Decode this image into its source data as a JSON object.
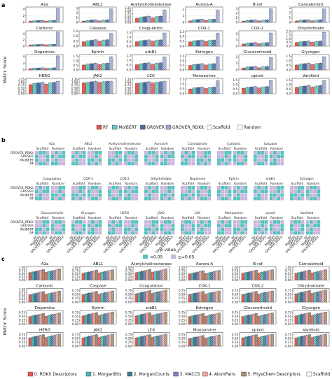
{
  "panel_letters": {
    "a": "a",
    "b": "b",
    "c": "c"
  },
  "colors": {
    "RF": "#e8574b",
    "MolBERT": "#5fc9c4",
    "GROVER": "#4a6a9b",
    "GROVER_RDKit": "#9aa6cf",
    "heat_sig": "#56c3bd",
    "heat_ns": "#c9b7dc",
    "c0": "#e8574b",
    "c1": "#4bb3b5",
    "c2": "#3f7a8c",
    "c3": "#7a86b8",
    "c4": "#f5a38f",
    "c5": "#9e8c7a"
  },
  "chart_data": [
    {
      "type": "bar",
      "panel": "a",
      "ylabel": "Metric Score",
      "targets": [
        "A2a",
        "ABL1",
        "Acetylcholinesterase",
        "Aurora-A",
        "B-raf",
        "Cannabinoid",
        "Carbonic",
        "Caspase",
        "Coagulation",
        "COX-1",
        "COX-2",
        "Dihydrofolate",
        "Dopamine",
        "Ephrin",
        "erbB1",
        "Estrogen",
        "Glucocorticoid",
        "Glycogen",
        "HERG",
        "JAK2",
        "LCK",
        "Monoamine",
        "opioid",
        "Vanilloid"
      ],
      "yticks": [
        [
          "0",
          "2",
          "4"
        ],
        [
          "0",
          "1",
          "2",
          "3"
        ],
        [
          "0.00",
          "0.25",
          "0.50",
          "0.75",
          "1.00",
          "1.25"
        ],
        [
          "0",
          "1",
          "2"
        ],
        [
          "0",
          "1",
          "2",
          "3"
        ],
        [
          "0",
          "1",
          "2",
          "3"
        ],
        [
          "0",
          "2",
          "4"
        ],
        [
          "0.0",
          "0.5",
          "1.0",
          "1.5"
        ],
        [
          "0.0",
          "0.5",
          "1.0",
          "1.5"
        ],
        [
          "0.0",
          "0.5",
          "1.0",
          "1.5"
        ],
        [
          "0",
          "1",
          "2"
        ],
        [
          "0.0",
          "0.5",
          "1.0",
          "1.5",
          "2.0"
        ],
        [
          "0",
          "2",
          "4"
        ],
        [
          "0.0",
          "0.5",
          "1.0",
          "1.5"
        ],
        [
          "0.0",
          "0.5",
          "1.0",
          "1.5"
        ],
        [
          "0.0",
          "0.5",
          "1.0",
          "1.5"
        ],
        [
          "0",
          "1",
          "2"
        ],
        [
          "0.0",
          "0.5",
          "1.0",
          "1.5"
        ],
        [
          "0.00",
          "0.25",
          "0.50",
          "0.75",
          "1.00",
          "1.25"
        ],
        [
          "0.00",
          "0.25",
          "0.50",
          "0.75",
          "1.00",
          "1.25"
        ],
        [
          "0.00",
          "0.25",
          "0.50",
          "0.75",
          "1.00",
          "1.25"
        ],
        [
          "0.0",
          "0.5",
          "1.0",
          "1.5"
        ],
        [
          "0.0",
          "0.5",
          "1.0",
          "1.5"
        ],
        [
          "0.0",
          "0.5",
          "1.0",
          "1.5"
        ]
      ],
      "ylim": [
        4.6,
        3.3,
        1.35,
        2.4,
        3.4,
        3.2,
        5.0,
        1.55,
        1.7,
        1.6,
        2.5,
        2.1,
        4.6,
        1.7,
        1.6,
        1.7,
        2.4,
        1.7,
        1.35,
        1.35,
        1.35,
        1.6,
        1.7,
        1.7
      ],
      "series": [
        {
          "name": "RF",
          "values": [
            0.35,
            0.3,
            0.35,
            0.25,
            0.3,
            0.3,
            0.4,
            0.45,
            0.5,
            0.45,
            0.35,
            0.5,
            0.4,
            0.55,
            0.55,
            0.5,
            0.3,
            0.55,
            0.8,
            0.95,
            0.9,
            0.5,
            0.6,
            0.7
          ]
        },
        {
          "name": "MolBERT",
          "values": [
            0.5,
            0.45,
            0.45,
            0.4,
            0.45,
            0.45,
            0.5,
            0.55,
            0.6,
            0.55,
            0.5,
            0.6,
            0.55,
            0.65,
            0.65,
            0.6,
            0.45,
            0.65,
            0.9,
            1.0,
            0.95,
            0.6,
            0.7,
            0.8
          ]
        },
        {
          "name": "GROVER",
          "values": [
            0.55,
            0.5,
            0.5,
            0.45,
            0.5,
            0.5,
            0.55,
            0.6,
            0.65,
            0.6,
            0.55,
            0.65,
            0.6,
            0.7,
            0.7,
            0.65,
            0.5,
            0.7,
            0.95,
            1.05,
            1.0,
            0.65,
            0.75,
            0.85
          ]
        },
        {
          "name": "GROVER_RDKit",
          "values": [
            0.6,
            0.55,
            0.55,
            0.5,
            0.55,
            0.55,
            0.6,
            0.65,
            0.7,
            0.65,
            0.6,
            0.7,
            0.65,
            0.75,
            0.75,
            0.7,
            0.55,
            0.75,
            1.0,
            1.1,
            1.05,
            0.7,
            0.8,
            0.9
          ]
        }
      ],
      "random_series": [
        {
          "name": "RF",
          "values": [
            0.4,
            0.35,
            0.4,
            0.3,
            0.35,
            0.35,
            0.45,
            0.5,
            0.55,
            0.5,
            0.4,
            0.55,
            0.45,
            0.6,
            0.6,
            0.55,
            0.35,
            0.6,
            0.85,
            1.0,
            0.95,
            0.55,
            0.65,
            0.75
          ]
        },
        {
          "name": "MolBERT",
          "values": [
            0.55,
            0.5,
            0.5,
            0.45,
            0.5,
            0.5,
            0.55,
            0.6,
            0.65,
            0.6,
            0.55,
            0.65,
            0.6,
            0.7,
            0.7,
            0.65,
            0.5,
            0.7,
            0.95,
            1.05,
            1.0,
            0.65,
            0.75,
            0.85
          ]
        },
        {
          "name": "GROVER",
          "values": [
            0.6,
            0.55,
            0.55,
            0.5,
            0.55,
            0.55,
            0.6,
            0.65,
            0.7,
            0.65,
            0.6,
            0.7,
            0.65,
            0.75,
            0.75,
            0.7,
            0.55,
            0.75,
            1.0,
            1.1,
            1.05,
            0.7,
            0.8,
            0.9
          ]
        },
        {
          "name": "GROVER_RDKit",
          "values": [
            4.2,
            2.9,
            1.1,
            1.9,
            3.0,
            2.8,
            4.6,
            1.3,
            1.45,
            1.35,
            2.15,
            1.9,
            4.2,
            1.45,
            1.35,
            1.45,
            1.95,
            1.45,
            1.1,
            1.1,
            1.1,
            1.35,
            1.45,
            1.45
          ]
        }
      ]
    },
    {
      "type": "heatmap",
      "panel": "b",
      "targets": [
        "A2a",
        "ABL1",
        "Acetylcholinesterase",
        "Aurora-A",
        "Cannabinoid",
        "Carbonic",
        "Caspase",
        "Coagulation",
        "COX-1",
        "COX-2",
        "Dihydrofolate",
        "Dopamine",
        "Ephrin",
        "erbB1",
        "Estrogen",
        "Glucocorticoid",
        "Glycogen",
        "HERG",
        "JAK2",
        "LCK",
        "Monoamine",
        "opioid",
        "Vanilloid"
      ],
      "rows_per_group": [
        [
          "A2a",
          "ABL1",
          "Acetylcholinesterase",
          "Aurora-A",
          "Cannabinoid",
          "Carbonic",
          "Caspase"
        ],
        [
          "Coagulation",
          "COX-1",
          "COX-2",
          "Dihydrofolate",
          "Dopamine",
          "Ephrin",
          "erbB1",
          "Estrogen"
        ],
        [
          "Glucocorticoid",
          "Glycogen",
          "HERG",
          "JAK2",
          "LCK",
          "Monoamine",
          "opioid",
          "Vanilloid"
        ]
      ],
      "split_labels": [
        "Scaffold",
        "Random"
      ],
      "models": [
        "GROVER_RDKit",
        "GROVER",
        "MolBERT",
        "RF"
      ],
      "legend_title": "p value",
      "legend": [
        "<0.05",
        "≥=0.05"
      ]
    },
    {
      "type": "bar",
      "panel": "c",
      "ylabel": "Metric Score",
      "targets": [
        "A2a",
        "ABL1",
        "Acetylcholinesterase",
        "Aurora-A",
        "B-raf",
        "Cannabinoid",
        "Carbonic",
        "Caspase",
        "Coagulation",
        "COX-1",
        "COX-2",
        "Dihydrofolate",
        "Dopamine",
        "Ephrin",
        "erbB1",
        "Estrogen",
        "Glucocorticoid",
        "Glycogen",
        "HERG",
        "JAK2",
        "LCK",
        "Monoamine",
        "opioid",
        "Vanilloid"
      ],
      "yticks": [
        [
          "0.00",
          "0.25",
          "0.50",
          "0.75",
          "1.00"
        ],
        [
          "0.00",
          "0.25",
          "0.50",
          "0.75",
          "1.00"
        ],
        [
          "0.00",
          "0.25",
          "0.50",
          "0.75",
          "1.00"
        ],
        [
          "0.00",
          "0.25",
          "0.50",
          "0.75",
          "1.00"
        ],
        [
          "0.00",
          "0.25",
          "0.50",
          "0.75",
          "1.00"
        ],
        [
          "0.00",
          "0.25",
          "0.50",
          "0.75",
          "1.00"
        ],
        [
          "0.00",
          "0.25",
          "0.50",
          "0.75",
          "1.00"
        ],
        [
          "0.00",
          "0.25",
          "0.50",
          "0.75"
        ],
        [
          "0.00",
          "0.25",
          "0.50",
          "0.75"
        ],
        [
          "0.00",
          "0.25",
          "0.50",
          "0.75"
        ],
        [
          "0.00",
          "0.25",
          "0.50",
          "0.75"
        ],
        [
          "0.00",
          "0.25",
          "0.50",
          "0.75"
        ],
        [
          "0.00",
          "0.25",
          "0.50",
          "0.75"
        ],
        [
          "0.00",
          "0.25",
          "0.50",
          "0.75"
        ],
        [
          "0.00",
          "0.25",
          "0.50",
          "0.75"
        ],
        [
          "0.00",
          "0.25",
          "0.50",
          "0.75"
        ],
        [
          "0.00",
          "0.25",
          "0.50",
          "0.75"
        ],
        [
          "0.00",
          "0.25",
          "0.50",
          "0.75"
        ],
        [
          "0.00",
          "0.25",
          "0.50",
          "0.75"
        ],
        [
          "0.00",
          "0.25",
          "0.50",
          "0.75"
        ],
        [
          "0.00",
          "0.25",
          "0.50",
          "0.75"
        ],
        [
          "0.00",
          "0.25",
          "0.50",
          "0.75"
        ],
        [
          "0.00",
          "0.25",
          "0.50",
          "0.75"
        ],
        [
          "0.00",
          "0.25",
          "0.50",
          "0.75"
        ]
      ],
      "ylim": [
        1.1,
        1.1,
        1.1,
        1.1,
        1.1,
        1.1,
        1.1,
        0.9,
        0.9,
        0.9,
        0.9,
        0.9,
        0.9,
        0.9,
        0.9,
        0.9,
        0.9,
        0.9,
        0.9,
        0.9,
        0.9,
        0.9,
        0.9,
        0.9
      ],
      "series": [
        {
          "name": "0. RDKit Descriptors",
          "values": [
            0.6,
            0.55,
            0.6,
            0.5,
            0.55,
            0.55,
            0.6,
            0.5,
            0.55,
            0.5,
            0.5,
            0.55,
            0.5,
            0.55,
            0.55,
            0.5,
            0.5,
            0.55,
            0.55,
            0.55,
            0.55,
            0.5,
            0.55,
            0.55
          ]
        },
        {
          "name": "1. MorganBits",
          "values": [
            0.65,
            0.6,
            0.65,
            0.55,
            0.6,
            0.6,
            0.65,
            0.55,
            0.6,
            0.55,
            0.55,
            0.6,
            0.55,
            0.6,
            0.6,
            0.55,
            0.55,
            0.6,
            0.6,
            0.6,
            0.6,
            0.55,
            0.6,
            0.6
          ]
        },
        {
          "name": "2. MorganCounts",
          "values": [
            0.7,
            0.65,
            0.7,
            0.6,
            0.65,
            0.65,
            0.7,
            0.6,
            0.65,
            0.6,
            0.6,
            0.65,
            0.6,
            0.65,
            0.65,
            0.6,
            0.6,
            0.65,
            0.65,
            0.65,
            0.65,
            0.6,
            0.65,
            0.65
          ]
        },
        {
          "name": "3. MACCS",
          "values": [
            0.75,
            0.7,
            0.75,
            0.65,
            0.7,
            0.7,
            0.75,
            0.62,
            0.68,
            0.62,
            0.62,
            0.68,
            0.62,
            0.68,
            0.68,
            0.62,
            0.62,
            0.68,
            0.68,
            0.68,
            0.68,
            0.62,
            0.68,
            0.68
          ]
        },
        {
          "name": "4. AtomPairs",
          "values": [
            0.8,
            0.75,
            0.8,
            0.7,
            0.75,
            0.75,
            0.8,
            0.66,
            0.72,
            0.66,
            0.66,
            0.72,
            0.66,
            0.72,
            0.72,
            0.66,
            0.66,
            0.72,
            0.72,
            0.72,
            0.72,
            0.66,
            0.72,
            0.72
          ]
        },
        {
          "name": "5. PhysChem Descriptors",
          "values": [
            0.85,
            0.8,
            0.85,
            0.75,
            0.8,
            0.8,
            0.85,
            0.7,
            0.76,
            0.7,
            0.7,
            0.76,
            0.7,
            0.76,
            0.76,
            0.7,
            0.7,
            0.76,
            0.76,
            0.76,
            0.76,
            0.7,
            0.76,
            0.76
          ]
        }
      ]
    }
  ],
  "legend_a": [
    "RF",
    "MolBERT",
    "GROVER",
    "GROVER_RDKit",
    "Scaffold",
    "Random"
  ],
  "legend_c": [
    "0. RDKit Descriptors",
    "1. MorganBits",
    "2. MorganCounts",
    "3. MACCS",
    "4. AtomPairs",
    "5. PhysChem Descriptors",
    "Scaffold",
    "Random"
  ]
}
